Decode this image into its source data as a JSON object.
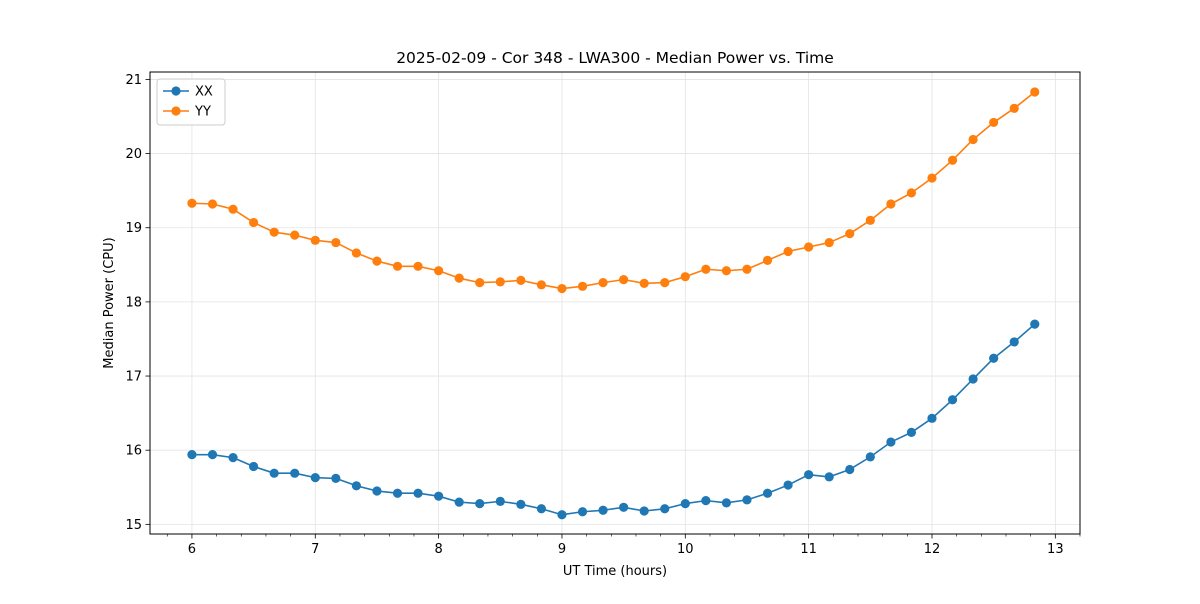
{
  "chart_data": {
    "type": "line",
    "title": "2025-02-09 - Cor 348 - LWA300 - Median Power vs. Time",
    "xlabel": "UT Time (hours)",
    "ylabel": "Median Power (CPU)",
    "xlim": [
      5.66,
      13.2
    ],
    "ylim": [
      14.87,
      21.1
    ],
    "xticks": [
      6,
      7,
      8,
      9,
      10,
      11,
      12,
      13
    ],
    "yticks": [
      15,
      16,
      17,
      18,
      19,
      20,
      21
    ],
    "grid": true,
    "legend_position": "top-left",
    "x": [
      6.0,
      6.1667,
      6.3333,
      6.5,
      6.6667,
      6.8333,
      7.0,
      7.1667,
      7.3333,
      7.5,
      7.6667,
      7.8333,
      8.0,
      8.1667,
      8.3333,
      8.5,
      8.6667,
      8.8333,
      9.0,
      9.1667,
      9.3333,
      9.5,
      9.6667,
      9.8333,
      10.0,
      10.1667,
      10.3333,
      10.5,
      10.6667,
      10.8333,
      11.0,
      11.1667,
      11.3333,
      11.5,
      11.6667,
      11.8333,
      12.0,
      12.1667,
      12.3333,
      12.5,
      12.6667,
      12.8333
    ],
    "series": [
      {
        "name": "XX",
        "color": "#1f77b4",
        "values": [
          15.94,
          15.94,
          15.9,
          15.78,
          15.69,
          15.69,
          15.63,
          15.62,
          15.52,
          15.45,
          15.42,
          15.42,
          15.38,
          15.3,
          15.28,
          15.31,
          15.27,
          15.21,
          15.13,
          15.17,
          15.19,
          15.23,
          15.18,
          15.21,
          15.28,
          15.32,
          15.29,
          15.33,
          15.42,
          15.53,
          15.67,
          15.64,
          15.74,
          15.91,
          16.11,
          16.24,
          16.43,
          16.68,
          16.96,
          17.24,
          17.46,
          17.7
        ]
      },
      {
        "name": "YY",
        "color": "#ff7f0e",
        "values": [
          19.33,
          19.32,
          19.25,
          19.07,
          18.94,
          18.9,
          18.83,
          18.8,
          18.66,
          18.55,
          18.48,
          18.48,
          18.42,
          18.32,
          18.26,
          18.27,
          18.29,
          18.23,
          18.18,
          18.21,
          18.26,
          18.3,
          18.25,
          18.26,
          18.34,
          18.44,
          18.42,
          18.44,
          18.56,
          18.68,
          18.74,
          18.8,
          18.92,
          19.1,
          19.32,
          19.47,
          19.67,
          19.91,
          20.19,
          20.42,
          20.61,
          20.83
        ]
      }
    ]
  }
}
